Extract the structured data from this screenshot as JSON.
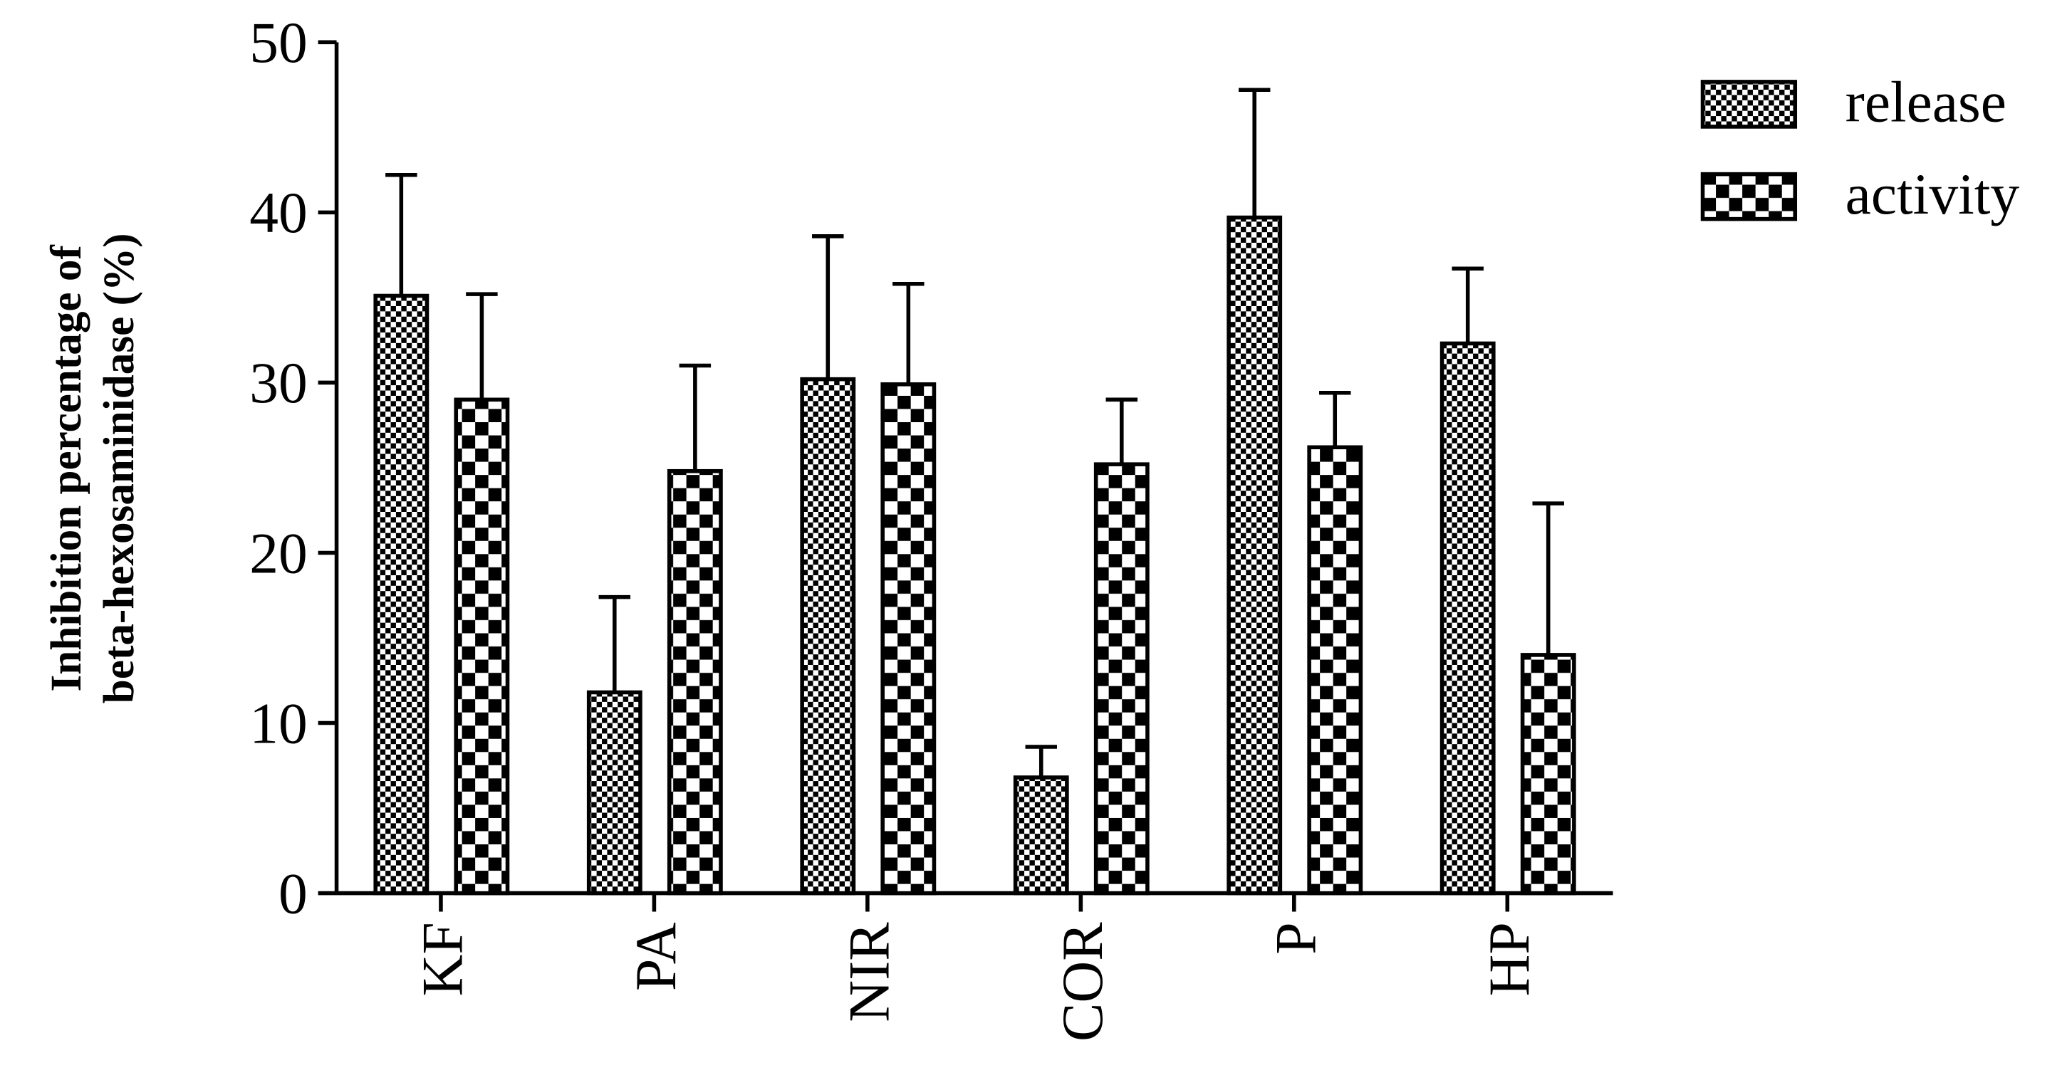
{
  "chart_data": {
    "type": "bar",
    "y_label": [
      "Inhibition percentage of",
      "beta-hexosaminidase (%)"
    ],
    "categories": [
      "KF",
      "PA",
      "NIR",
      "COR",
      "P",
      "HP"
    ],
    "series": [
      {
        "name": "release",
        "color": "#000000",
        "pattern": "fine",
        "values": [
          35.1,
          11.8,
          30.2,
          6.8,
          39.7,
          32.3
        ],
        "errors": [
          7.1,
          5.6,
          8.4,
          1.8,
          7.5,
          4.4
        ]
      },
      {
        "name": "activity",
        "color": "#000000",
        "pattern": "coarse",
        "values": [
          29.0,
          24.8,
          29.9,
          25.2,
          26.2,
          14.0
        ],
        "errors": [
          6.2,
          6.2,
          5.9,
          3.8,
          3.2,
          8.9
        ]
      }
    ],
    "ylim": [
      0,
      50
    ],
    "yticks": [
      0,
      10,
      20,
      30,
      40,
      50
    ],
    "grid": false,
    "legend": "top-right"
  }
}
